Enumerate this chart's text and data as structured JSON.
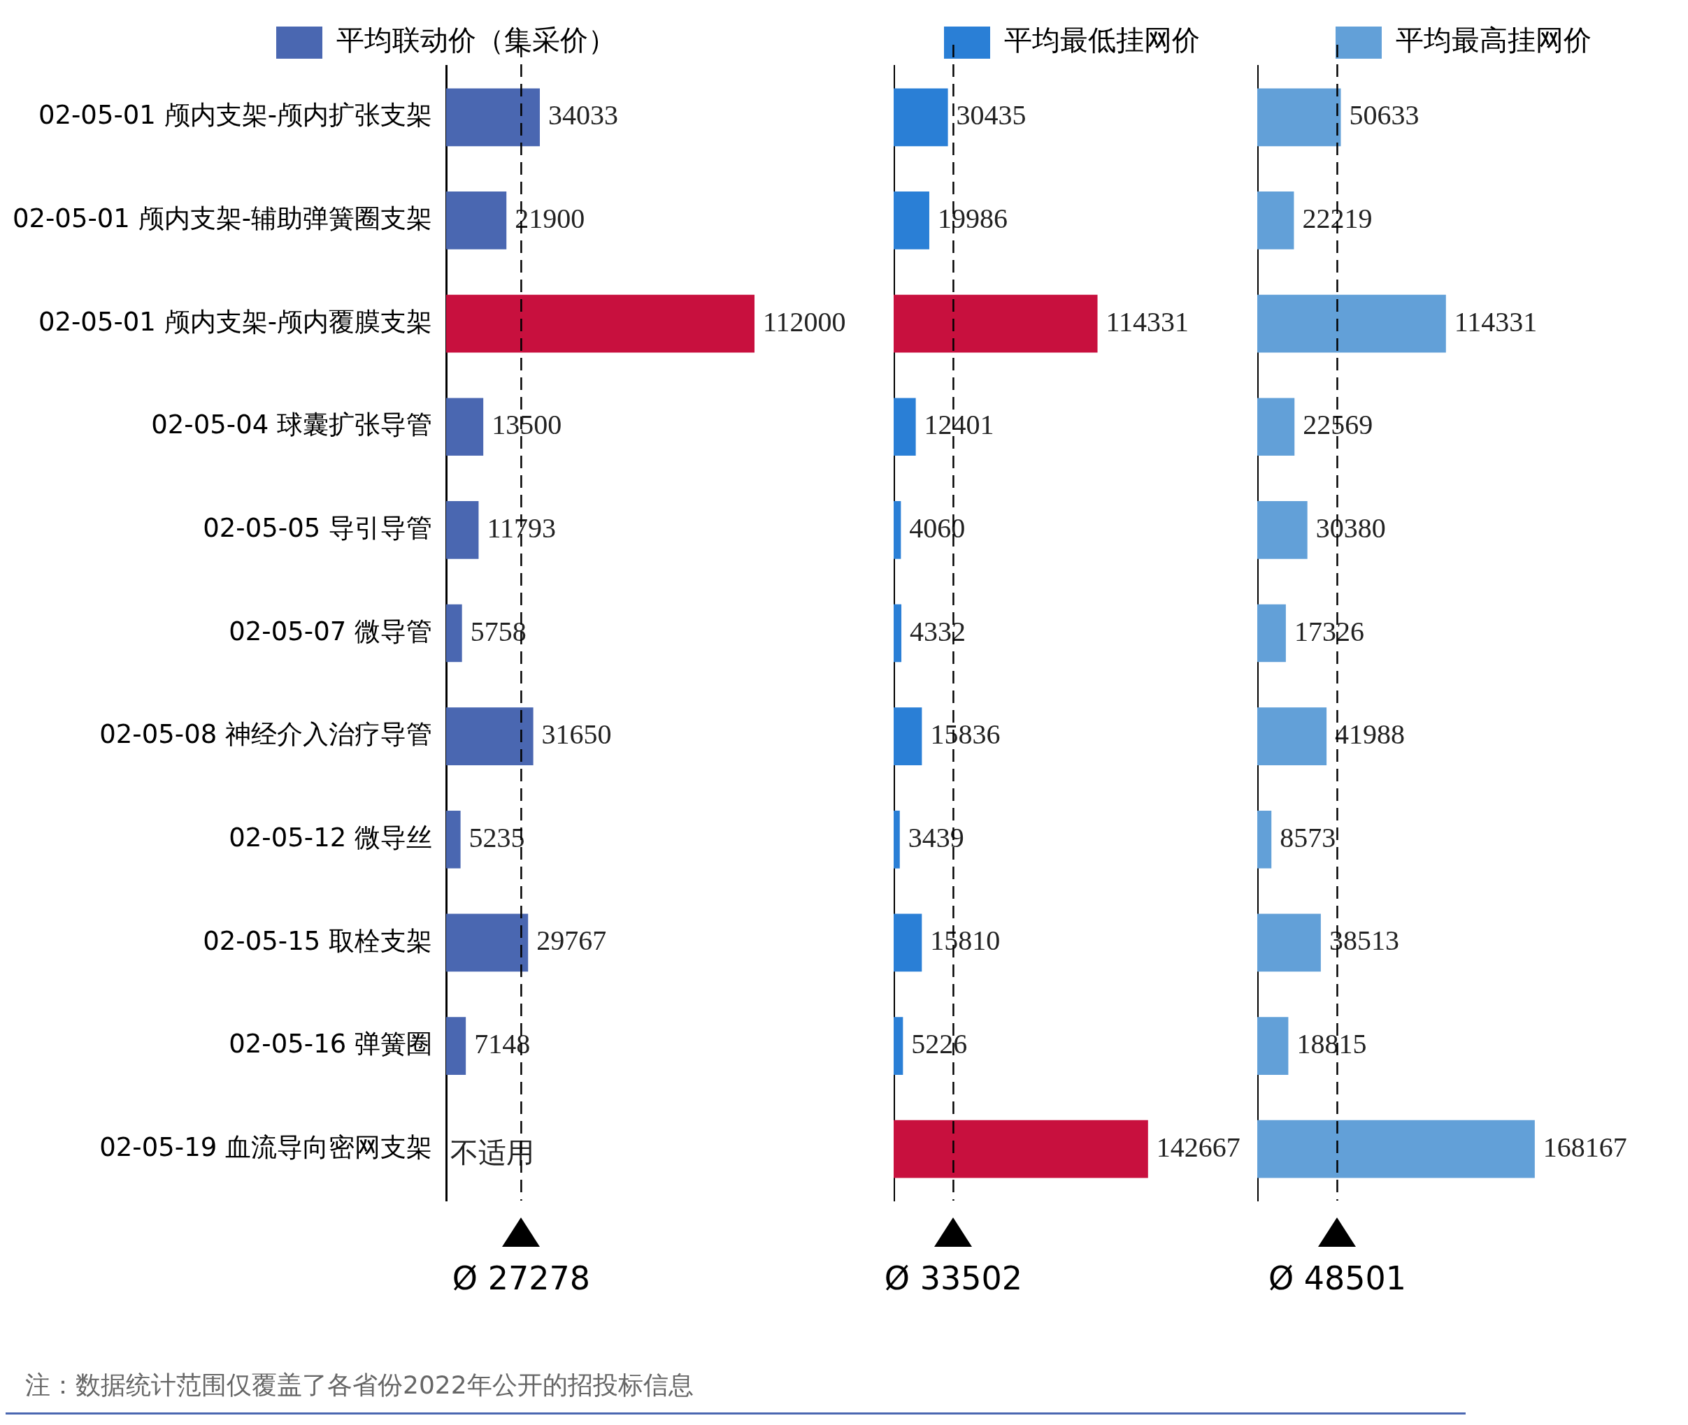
{
  "chart_data": [
    {
      "type": "bar",
      "orientation": "horizontal",
      "legend": "top",
      "grid": false,
      "tick_labels": "y",
      "categories": [
        "02-05-01 颅内支架-颅内扩张支架",
        "02-05-01 颅内支架-辅助弹簧圈支架",
        "02-05-01 颅内支架-颅内覆膜支架",
        "02-05-04 球囊扩张导管",
        "02-05-05 导引导管",
        "02-05-07 微导管",
        "02-05-08 神经介入治疗导管",
        "02-05-12 微导丝",
        "02-05-15 取栓支架",
        "02-05-16 弹簧圈",
        "02-05-19 血流导向密网支架"
      ],
      "series": [
        {
          "name": "平均联动价（集采价）",
          "color": "#4a67b1",
          "colors": [
            "#4a67b1",
            "#4a67b1",
            "#c8103e",
            "#4a67b1",
            "#4a67b1",
            "#4a67b1",
            "#4a67b1",
            "#4a67b1",
            "#4a67b1",
            "#4a67b1",
            "#4a67b1"
          ],
          "values": [
            34033,
            21900,
            112000,
            13500,
            11793,
            5758,
            31650,
            5235,
            29767,
            7148,
            null
          ],
          "value_labels": [
            "34033",
            "21900",
            "112000",
            "13500",
            "11793",
            "5758",
            "31650",
            "5235",
            "29767",
            "7148",
            "不适用"
          ]
        }
      ],
      "ref_lines": [
        {
          "axis": "x",
          "value": 27278,
          "label": "Ø 27278",
          "line_style": "dashed"
        }
      ],
      "annotations": [
        "注：数据统计范围仅覆盖了各省份2022年公开的招投标信息"
      ]
    },
    {
      "type": "bar",
      "orientation": "horizontal",
      "legend": "top",
      "grid": false,
      "tick_labels": false,
      "categories": [
        null,
        null,
        null,
        null,
        null,
        null,
        null,
        null,
        null,
        null,
        null
      ],
      "data_labels": true,
      "series": [
        {
          "name": "平均最低挂网价",
          "color": "#2a7fd6",
          "colors": [
            "#2a7fd6",
            "#2a7fd6",
            "#c8103e",
            "#2a7fd6",
            "#2a7fd6",
            "#2a7fd6",
            "#2a7fd6",
            "#2a7fd6",
            "#2a7fd6",
            "#2a7fd6",
            "#c8103e"
          ],
          "values": [
            30435,
            19986,
            114331,
            12401,
            4060,
            4332,
            15836,
            3439,
            15810,
            5226,
            142667
          ]
        }
      ],
      "ref_lines": [
        {
          "axis": "x",
          "value": 33502,
          "label": "Ø 33502",
          "line_style": "dashed"
        }
      ]
    },
    {
      "type": "bar",
      "orientation": "horizontal",
      "legend": "top",
      "grid": false,
      "tick_labels": false,
      "categories": [
        null,
        null,
        null,
        null,
        null,
        null,
        null,
        null,
        null,
        null,
        null
      ],
      "data_labels": true,
      "series": [
        {
          "name": "平均最高挂网价",
          "color": "#62a0d8",
          "colors": [
            "#62a0d8",
            "#62a0d8",
            "#62a0d8",
            "#62a0d8",
            "#62a0d8",
            "#62a0d8",
            "#62a0d8",
            "#62a0d8",
            "#62a0d8",
            "#62a0d8",
            "#62a0d8"
          ],
          "values": [
            50633,
            22219,
            114331,
            22569,
            30380,
            17326,
            41988,
            8573,
            38513,
            18815,
            168167
          ]
        }
      ],
      "ref_lines": [
        {
          "axis": "x",
          "value": 48501,
          "label": "Ø 48501",
          "line_style": "dashed"
        }
      ]
    }
  ]
}
